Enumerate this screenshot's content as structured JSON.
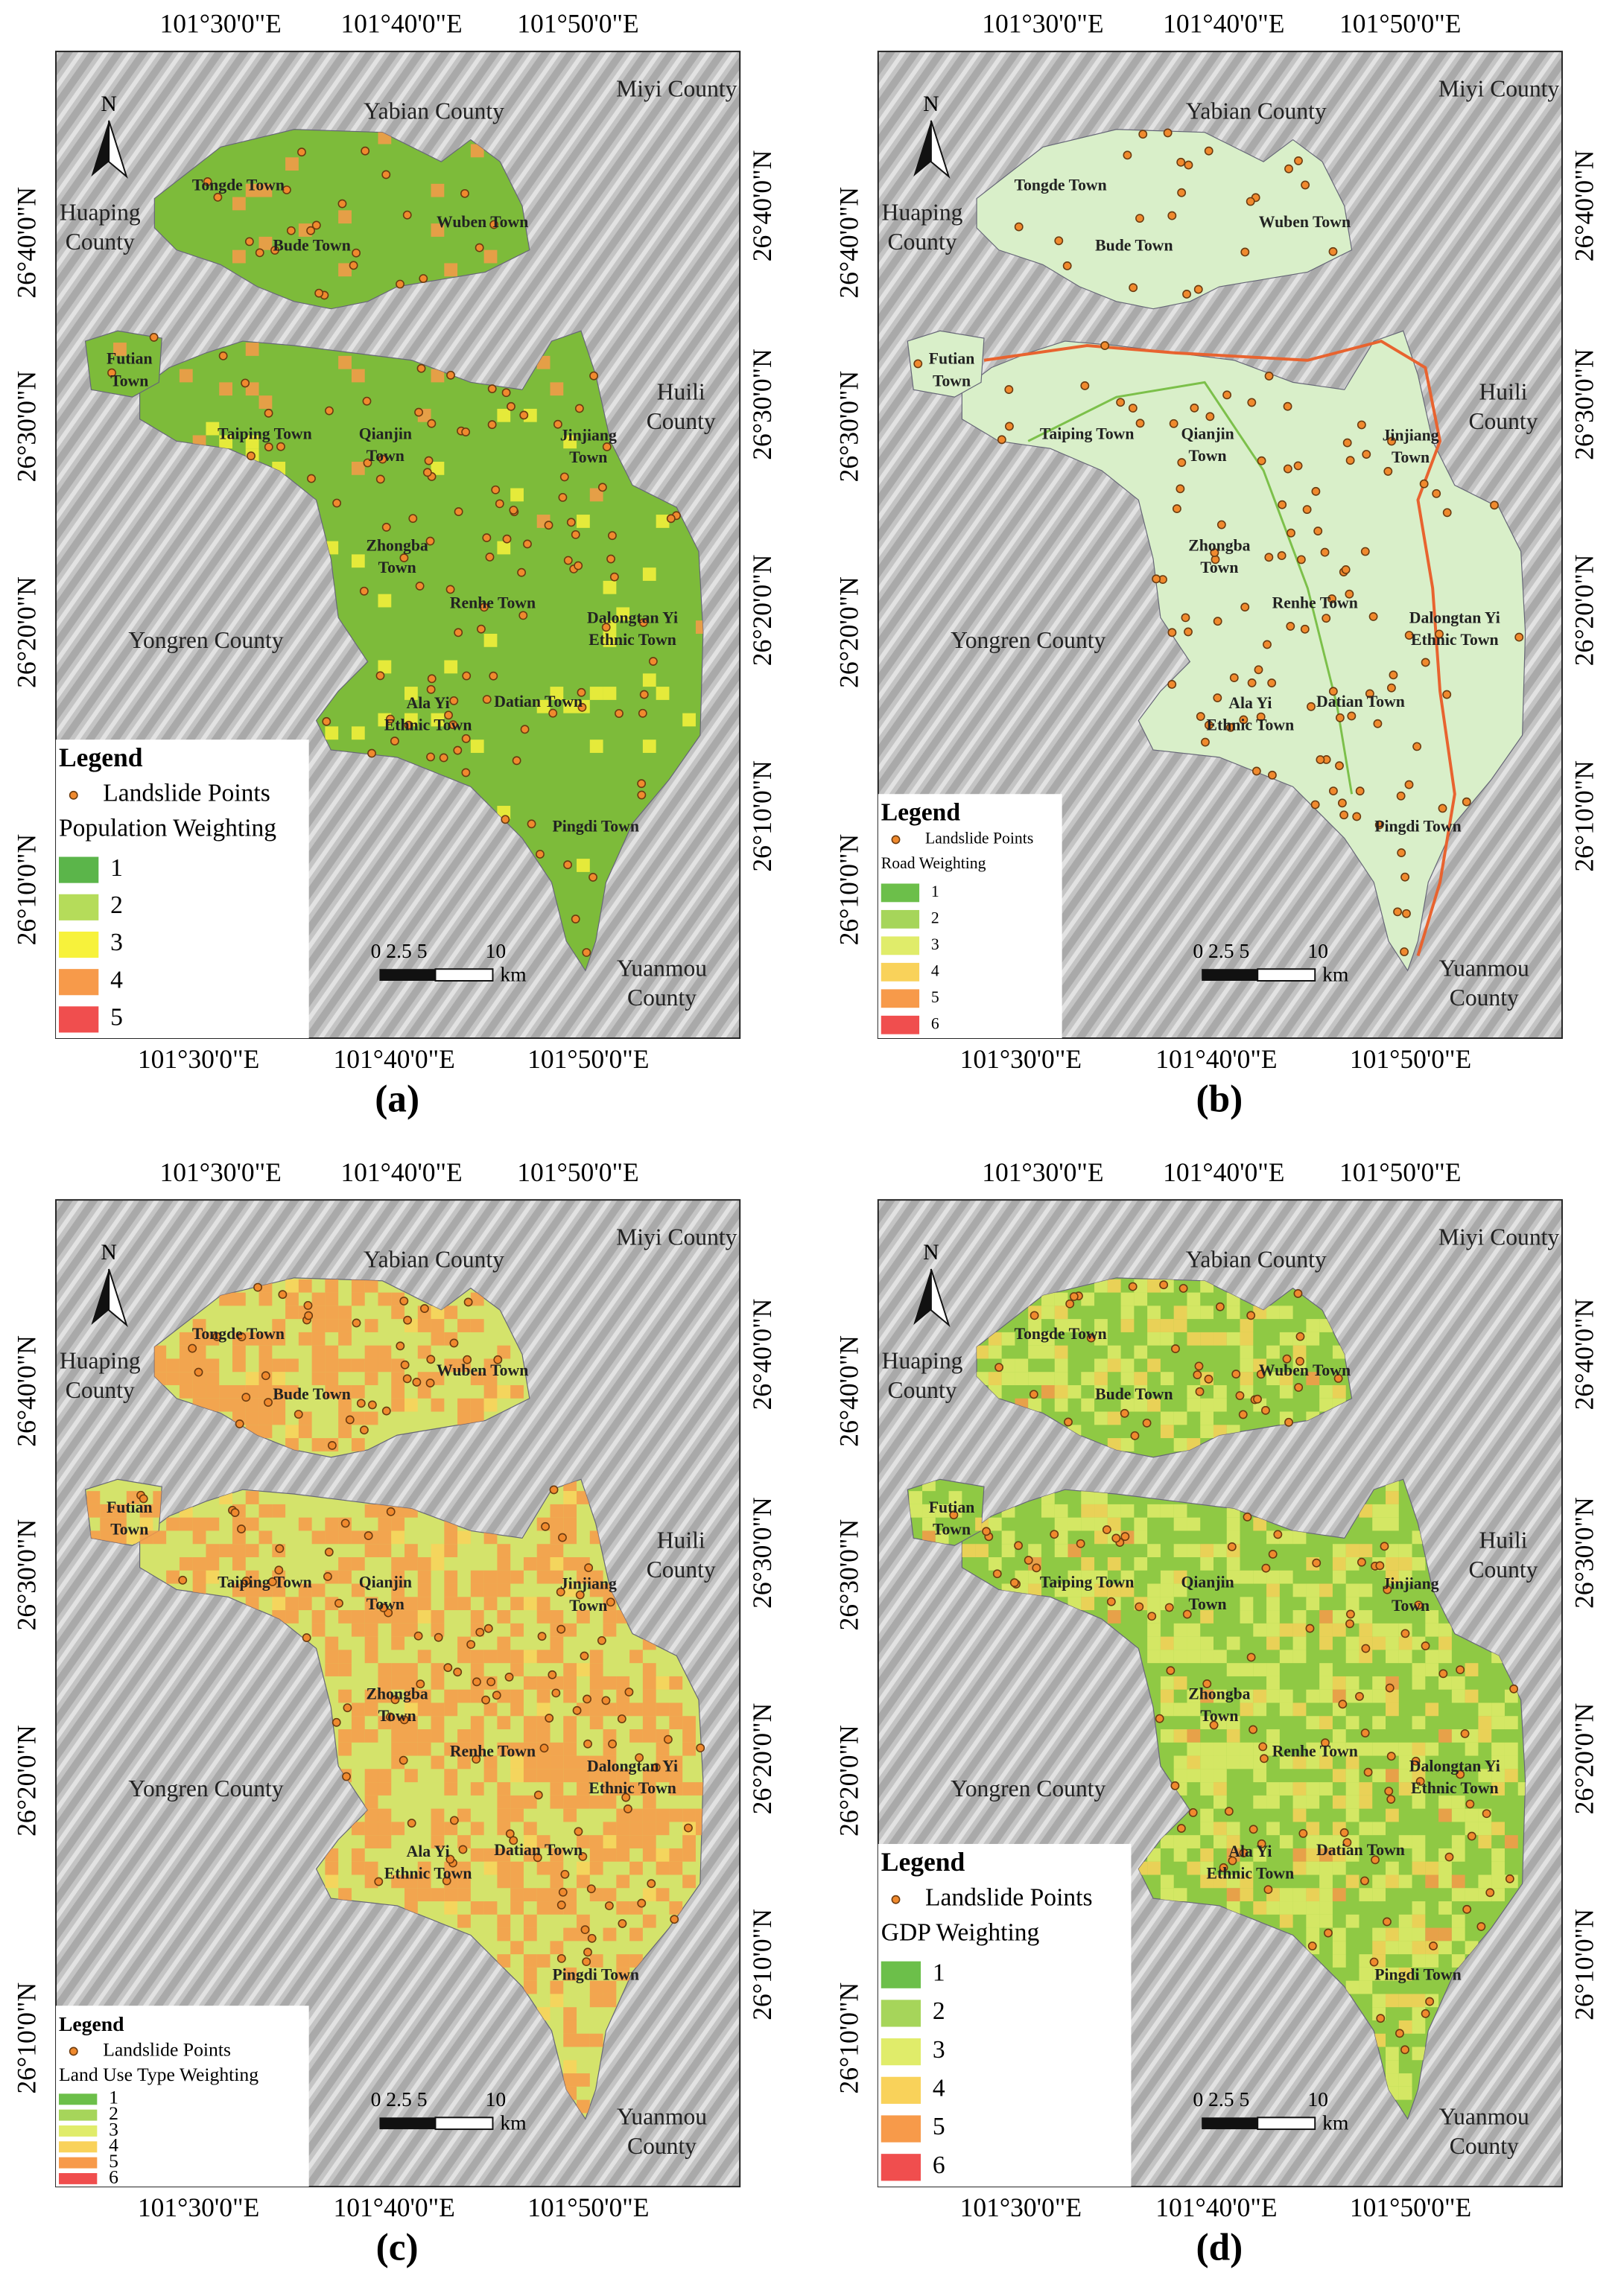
{
  "panels": [
    {
      "label": "(a)",
      "legend_title": "Legend",
      "points_label": "Landslide Points",
      "weighting_title": "Population Weighting",
      "fill": "#7dbb3a",
      "classes": [
        {
          "label": "1",
          "color": "#5bb54a"
        },
        {
          "label": "2",
          "color": "#b5dc5a"
        },
        {
          "label": "3",
          "color": "#f7f23b"
        },
        {
          "label": "4",
          "color": "#f79a4a"
        },
        {
          "label": "5",
          "color": "#f04e4e"
        }
      ]
    },
    {
      "label": "(b)",
      "legend_title": "Legend",
      "points_label": "Landslide Points",
      "weighting_title": "Road Weighting",
      "fill": "#d9efc9",
      "classes": [
        {
          "label": "1",
          "color": "#6cbf4a"
        },
        {
          "label": "2",
          "color": "#a6d55a"
        },
        {
          "label": "3",
          "color": "#e0ec6a"
        },
        {
          "label": "4",
          "color": "#f9d25a"
        },
        {
          "label": "5",
          "color": "#f79a4a"
        },
        {
          "label": "6",
          "color": "#f04e4e"
        }
      ]
    },
    {
      "label": "(c)",
      "legend_title": "Legend",
      "points_label": "Landslide Points",
      "weighting_title": "Land Use Type Weighting",
      "fill": "#d4e36b",
      "classes": [
        {
          "label": "1",
          "color": "#6cbf4a"
        },
        {
          "label": "2",
          "color": "#a6d55a"
        },
        {
          "label": "3",
          "color": "#e0ec6a"
        },
        {
          "label": "4",
          "color": "#f9d25a"
        },
        {
          "label": "5",
          "color": "#f79a4a"
        },
        {
          "label": "6",
          "color": "#f04e4e"
        }
      ]
    },
    {
      "label": "(d)",
      "legend_title": "Legend",
      "points_label": "Landslide Points",
      "weighting_title": "GDP Weighting",
      "fill": "#8fc944",
      "classes": [
        {
          "label": "1",
          "color": "#6cbf4a"
        },
        {
          "label": "2",
          "color": "#a6d55a"
        },
        {
          "label": "3",
          "color": "#e0ec6a"
        },
        {
          "label": "4",
          "color": "#f9d25a"
        },
        {
          "label": "5",
          "color": "#f79a4a"
        },
        {
          "label": "6",
          "color": "#f04e4e"
        }
      ]
    }
  ],
  "north": "N",
  "scale": {
    "ticks": "0 2.5 5",
    "end": "10",
    "unit": "km"
  },
  "top_ticks": [
    "101°30'0\"E",
    "101°40'0\"E",
    "101°50'0\"E"
  ],
  "bottom_ticks": [
    "101°30'0\"E",
    "101°40'0\"E",
    "101°50'0\"E"
  ],
  "left_ticks": [
    "26°40'0\"N",
    "26°30'0\"N",
    "26°20'0\"N",
    "26°10'0\"N"
  ],
  "right_ticks": [
    "26°40'0\"N",
    "26°30'0\"N",
    "26°20'0\"N",
    "26°10'0\"N"
  ],
  "counties": [
    [
      "Yabian County"
    ],
    [
      "Miyi County"
    ],
    [
      "Huaping",
      "County"
    ],
    [
      "Huili",
      "County"
    ],
    [
      "Yongren County"
    ],
    [
      "Yuanmou",
      "County"
    ]
  ],
  "towns": [
    [
      "Tongde Town"
    ],
    [
      "Bude Town"
    ],
    [
      "Wuben Town"
    ],
    [
      "Futian",
      "Town"
    ],
    [
      "Taiping Town"
    ],
    [
      "Qianjin",
      "Town"
    ],
    [
      "Jinjiang",
      "Town"
    ],
    [
      "Zhongba",
      "Town"
    ],
    [
      "Renhe Town"
    ],
    [
      "Dalongtan Yi",
      "Ethnic Town"
    ],
    [
      "Ala Yi",
      "Ethnic Town"
    ],
    [
      "Datian Town"
    ],
    [
      "Pingdi Town"
    ]
  ]
}
